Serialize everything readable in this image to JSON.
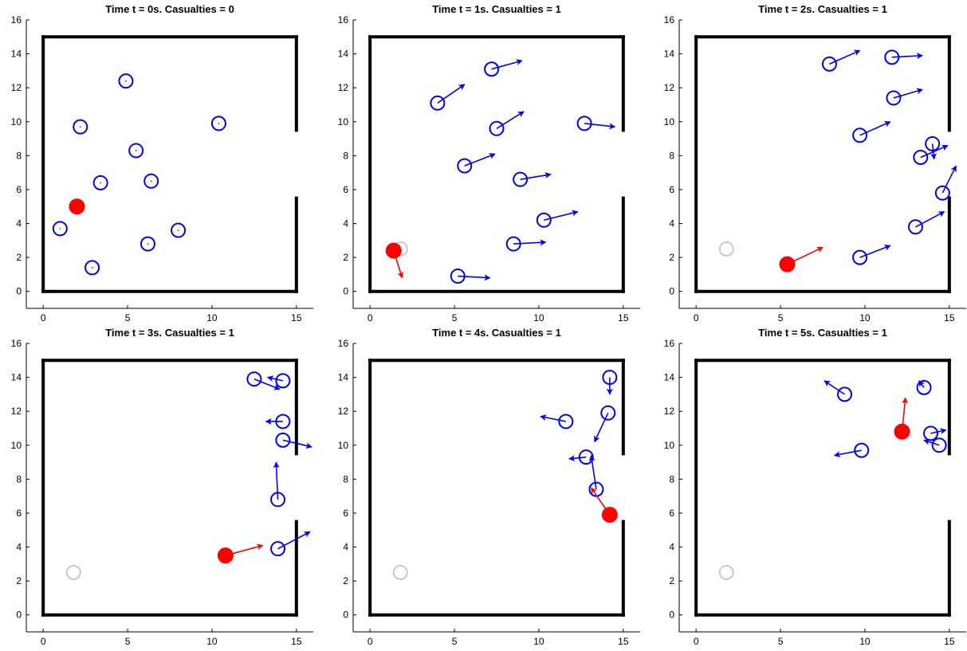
{
  "figure": {
    "colors": {
      "agent": "#0000ff",
      "shooter": "#ff0000",
      "casualty": "#c8c8c8",
      "walls": "#000000"
    }
  },
  "chart_data": [
    {
      "type": "scatter",
      "title": "Time t = 0s. Casualties = 0",
      "xlim": [
        -1,
        16
      ],
      "ylim": [
        -1,
        16
      ],
      "xticks": [
        0,
        5,
        10,
        15
      ],
      "yticks": [
        0,
        2,
        4,
        6,
        8,
        10,
        12,
        14,
        16
      ],
      "walls": [
        {
          "x": [
            0,
            15
          ],
          "y": [
            0,
            0
          ]
        },
        {
          "x": [
            0,
            15
          ],
          "y": [
            15,
            15
          ]
        },
        {
          "x": [
            0,
            0
          ],
          "y": [
            0,
            15
          ]
        },
        {
          "x": [
            15,
            15
          ],
          "y": [
            0,
            5.5
          ]
        },
        {
          "x": [
            15,
            15
          ],
          "y": [
            9.5,
            15
          ]
        }
      ],
      "agents": [
        {
          "x": 4.9,
          "y": 12.4,
          "u": 0,
          "v": 0
        },
        {
          "x": 2.2,
          "y": 9.7,
          "u": 0,
          "v": 0
        },
        {
          "x": 10.4,
          "y": 9.9,
          "u": 0,
          "v": 0
        },
        {
          "x": 5.5,
          "y": 8.3,
          "u": 0,
          "v": 0
        },
        {
          "x": 3.4,
          "y": 6.4,
          "u": 0,
          "v": 0
        },
        {
          "x": 6.4,
          "y": 6.5,
          "u": 0,
          "v": 0
        },
        {
          "x": 1.0,
          "y": 3.7,
          "u": 0,
          "v": 0
        },
        {
          "x": 6.2,
          "y": 2.8,
          "u": 0,
          "v": 0
        },
        {
          "x": 8.0,
          "y": 3.6,
          "u": 0,
          "v": 0
        },
        {
          "x": 2.9,
          "y": 1.4,
          "u": 0,
          "v": 0
        }
      ],
      "casualties": [],
      "shooter": {
        "x": 2.0,
        "y": 5.0,
        "u": 0,
        "v": 0
      }
    },
    {
      "type": "scatter",
      "title": "Time t = 1s. Casualties = 1",
      "xlim": [
        -1,
        16
      ],
      "ylim": [
        -1,
        16
      ],
      "xticks": [
        0,
        5,
        10,
        15
      ],
      "yticks": [
        0,
        2,
        4,
        6,
        8,
        10,
        12,
        14,
        16
      ],
      "walls": [
        {
          "x": [
            0,
            15
          ],
          "y": [
            0,
            0
          ]
        },
        {
          "x": [
            0,
            15
          ],
          "y": [
            15,
            15
          ]
        },
        {
          "x": [
            0,
            0
          ],
          "y": [
            0,
            15
          ]
        },
        {
          "x": [
            15,
            15
          ],
          "y": [
            0,
            5.5
          ]
        },
        {
          "x": [
            15,
            15
          ],
          "y": [
            9.5,
            15
          ]
        }
      ],
      "agents": [
        {
          "x": 7.2,
          "y": 13.1,
          "u": 1.8,
          "v": 0.5
        },
        {
          "x": 4.0,
          "y": 11.1,
          "u": 1.6,
          "v": 1.1
        },
        {
          "x": 7.5,
          "y": 9.6,
          "u": 1.6,
          "v": 1.0
        },
        {
          "x": 12.7,
          "y": 9.9,
          "u": 1.8,
          "v": -0.2
        },
        {
          "x": 5.6,
          "y": 7.4,
          "u": 1.8,
          "v": 0.7
        },
        {
          "x": 8.9,
          "y": 6.6,
          "u": 1.8,
          "v": 0.3
        },
        {
          "x": 10.3,
          "y": 4.2,
          "u": 2.0,
          "v": 0.5
        },
        {
          "x": 8.5,
          "y": 2.8,
          "u": 1.9,
          "v": 0.1
        },
        {
          "x": 5.2,
          "y": 0.9,
          "u": 1.9,
          "v": -0.1
        }
      ],
      "casualties": [
        {
          "x": 1.8,
          "y": 2.5
        }
      ],
      "shooter": {
        "x": 1.4,
        "y": 2.4,
        "u": 0.5,
        "v": -1.6
      }
    },
    {
      "type": "scatter",
      "title": "Time t = 2s. Casualties = 1",
      "xlim": [
        -1,
        16
      ],
      "ylim": [
        -1,
        16
      ],
      "xticks": [
        0,
        5,
        10,
        15
      ],
      "yticks": [
        0,
        2,
        4,
        6,
        8,
        10,
        12,
        14,
        16
      ],
      "walls": [
        {
          "x": [
            0,
            15
          ],
          "y": [
            0,
            0
          ]
        },
        {
          "x": [
            0,
            15
          ],
          "y": [
            15,
            15
          ]
        },
        {
          "x": [
            0,
            0
          ],
          "y": [
            0,
            15
          ]
        },
        {
          "x": [
            15,
            15
          ],
          "y": [
            0,
            5.5
          ]
        },
        {
          "x": [
            15,
            15
          ],
          "y": [
            9.5,
            15
          ]
        }
      ],
      "agents": [
        {
          "x": 7.9,
          "y": 13.4,
          "u": 1.8,
          "v": 0.8
        },
        {
          "x": 11.6,
          "y": 13.8,
          "u": 1.8,
          "v": 0.1
        },
        {
          "x": 11.7,
          "y": 11.4,
          "u": 1.7,
          "v": 0.5
        },
        {
          "x": 9.7,
          "y": 9.2,
          "u": 1.8,
          "v": 0.8
        },
        {
          "x": 14.0,
          "y": 8.7,
          "u": 0.1,
          "v": -0.9
        },
        {
          "x": 13.3,
          "y": 7.9,
          "u": 1.6,
          "v": 0.7
        },
        {
          "x": 14.6,
          "y": 5.8,
          "u": 0.8,
          "v": 1.6
        },
        {
          "x": 13.0,
          "y": 3.8,
          "u": 1.7,
          "v": 0.9
        },
        {
          "x": 9.7,
          "y": 2.0,
          "u": 1.8,
          "v": 0.7
        }
      ],
      "casualties": [
        {
          "x": 1.8,
          "y": 2.5
        }
      ],
      "shooter": {
        "x": 5.4,
        "y": 1.6,
        "u": 2.1,
        "v": 1.0
      }
    },
    {
      "type": "scatter",
      "title": "Time t = 3s. Casualties = 1",
      "xlim": [
        -1,
        16
      ],
      "ylim": [
        -1,
        16
      ],
      "xticks": [
        0,
        5,
        10,
        15
      ],
      "yticks": [
        0,
        2,
        4,
        6,
        8,
        10,
        12,
        14,
        16
      ],
      "walls": [
        {
          "x": [
            0,
            15
          ],
          "y": [
            0,
            0
          ]
        },
        {
          "x": [
            0,
            15
          ],
          "y": [
            15,
            15
          ]
        },
        {
          "x": [
            0,
            0
          ],
          "y": [
            0,
            15
          ]
        },
        {
          "x": [
            15,
            15
          ],
          "y": [
            0,
            5.5
          ]
        },
        {
          "x": [
            15,
            15
          ],
          "y": [
            9.5,
            15
          ]
        }
      ],
      "agents": [
        {
          "x": 12.5,
          "y": 13.9,
          "u": 1.5,
          "v": -0.6
        },
        {
          "x": 14.2,
          "y": 13.8,
          "u": -0.9,
          "v": 0.2
        },
        {
          "x": 14.2,
          "y": 11.4,
          "u": -1.0,
          "v": 0.0
        },
        {
          "x": 14.2,
          "y": 10.3,
          "u": 1.7,
          "v": -0.4
        },
        {
          "x": 13.9,
          "y": 6.8,
          "u": -0.1,
          "v": 2.2
        },
        {
          "x": 13.9,
          "y": 3.9,
          "u": 1.9,
          "v": 1.0
        }
      ],
      "casualties": [
        {
          "x": 1.8,
          "y": 2.5
        }
      ],
      "shooter": {
        "x": 10.8,
        "y": 3.5,
        "u": 2.2,
        "v": 0.6
      }
    },
    {
      "type": "scatter",
      "title": "Time t = 4s. Casualties = 1",
      "xlim": [
        -1,
        16
      ],
      "ylim": [
        -1,
        16
      ],
      "xticks": [
        0,
        5,
        10,
        15
      ],
      "yticks": [
        0,
        2,
        4,
        6,
        8,
        10,
        12,
        14,
        16
      ],
      "walls": [
        {
          "x": [
            0,
            15
          ],
          "y": [
            0,
            0
          ]
        },
        {
          "x": [
            0,
            15
          ],
          "y": [
            15,
            15
          ]
        },
        {
          "x": [
            0,
            0
          ],
          "y": [
            0,
            15
          ]
        },
        {
          "x": [
            15,
            15
          ],
          "y": [
            0,
            5.5
          ]
        },
        {
          "x": [
            15,
            15
          ],
          "y": [
            9.5,
            15
          ]
        }
      ],
      "agents": [
        {
          "x": 14.2,
          "y": 14.0,
          "u": 0.0,
          "v": -1.0
        },
        {
          "x": 14.1,
          "y": 11.9,
          "u": -0.8,
          "v": -1.7
        },
        {
          "x": 11.6,
          "y": 11.4,
          "u": -1.5,
          "v": 0.3
        },
        {
          "x": 12.8,
          "y": 9.3,
          "u": -1.0,
          "v": -0.1
        },
        {
          "x": 13.4,
          "y": 7.4,
          "u": -0.3,
          "v": 2.0
        }
      ],
      "casualties": [
        {
          "x": 1.8,
          "y": 2.5
        }
      ],
      "shooter": {
        "x": 14.2,
        "y": 5.9,
        "u": -1.1,
        "v": 1.6
      }
    },
    {
      "type": "scatter",
      "title": "Time t = 5s. Casualties = 1",
      "xlim": [
        -1,
        16
      ],
      "ylim": [
        -1,
        16
      ],
      "xticks": [
        0,
        5,
        10,
        15
      ],
      "yticks": [
        0,
        2,
        4,
        6,
        8,
        10,
        12,
        14,
        16
      ],
      "walls": [
        {
          "x": [
            0,
            15
          ],
          "y": [
            0,
            0
          ]
        },
        {
          "x": [
            0,
            15
          ],
          "y": [
            15,
            15
          ]
        },
        {
          "x": [
            0,
            0
          ],
          "y": [
            0,
            15
          ]
        },
        {
          "x": [
            15,
            15
          ],
          "y": [
            0,
            5.5
          ]
        },
        {
          "x": [
            15,
            15
          ],
          "y": [
            9.5,
            15
          ]
        }
      ],
      "agents": [
        {
          "x": 8.8,
          "y": 13.0,
          "u": -1.2,
          "v": 0.8
        },
        {
          "x": 13.5,
          "y": 13.4,
          "u": -0.3,
          "v": 0.4
        },
        {
          "x": 13.9,
          "y": 10.7,
          "u": 0.9,
          "v": 0.2
        },
        {
          "x": 14.4,
          "y": 10.0,
          "u": -0.9,
          "v": 0.3
        },
        {
          "x": 9.8,
          "y": 9.7,
          "u": -1.6,
          "v": -0.3
        }
      ],
      "casualties": [
        {
          "x": 1.8,
          "y": 2.5
        }
      ],
      "shooter": {
        "x": 12.2,
        "y": 10.8,
        "u": 0.2,
        "v": 2.0
      }
    }
  ]
}
